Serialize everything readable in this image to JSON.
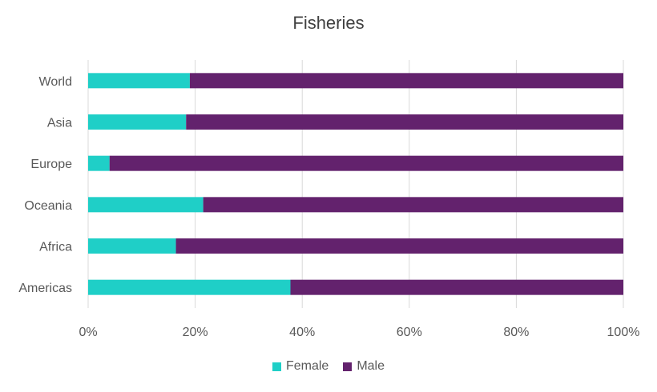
{
  "chart_data": {
    "type": "bar",
    "orientation": "horizontal",
    "stacked": "percent",
    "title": "Fisheries",
    "categories": [
      "World",
      "Asia",
      "Europe",
      "Oceania",
      "Africa",
      "Americas"
    ],
    "series": [
      {
        "name": "Female",
        "color": "#1fcfc7",
        "values": [
          19,
          18.3,
          4,
          21.5,
          16.4,
          37.8
        ]
      },
      {
        "name": "Male",
        "color": "#63226d",
        "values": [
          81,
          81.7,
          96,
          78.5,
          83.6,
          62.2
        ]
      }
    ],
    "xlim": [
      0,
      100
    ],
    "xticks": [
      "0%",
      "20%",
      "40%",
      "60%",
      "80%",
      "100%"
    ],
    "grid": "vertical",
    "legend_position": "bottom"
  }
}
